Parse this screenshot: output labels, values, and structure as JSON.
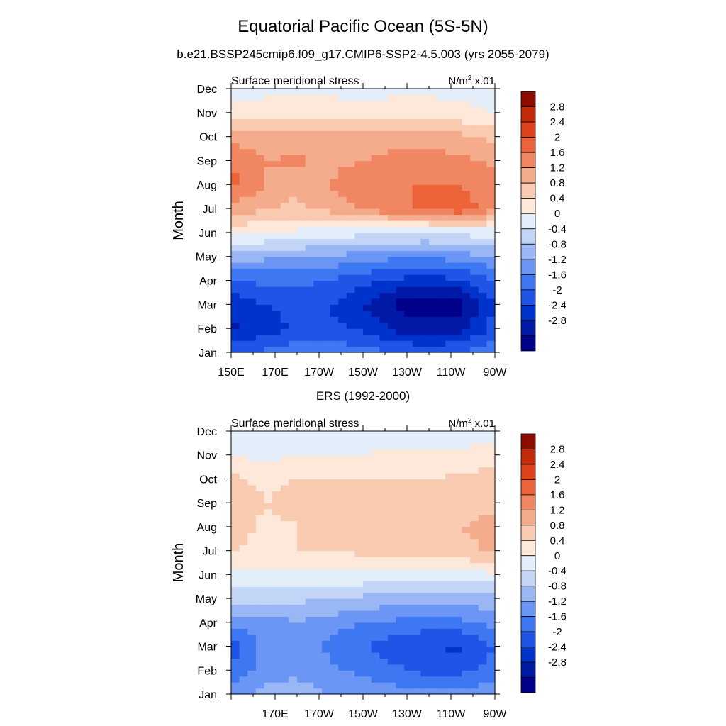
{
  "figure": {
    "title": "Equatorial Pacific Ocean (5S-5N)"
  },
  "colors": {
    "palette": [
      "#00008b",
      "#0019a6",
      "#0033cc",
      "#1f55e6",
      "#3d77f2",
      "#6b96f5",
      "#99b6f5",
      "#c2d5f7",
      "#e3eefa",
      "#fde8d9",
      "#f9ccb2",
      "#f5ac8c",
      "#f08762",
      "#ec6339",
      "#e0421b",
      "#c32a0a",
      "#8f0b00"
    ],
    "axis": "#000000",
    "background": "#ffffff"
  },
  "chart_data": [
    {
      "type": "heatmap",
      "title": "b.e21.BSSP245cmip6.f09_g17.CMIP6-SSP2-4.5.003 (yrs 2055-2079)",
      "panel_left": "Surface meridional stress",
      "units": {
        "base": "N/m",
        "sup": "2",
        "scale": " x.01"
      },
      "xlabel": "",
      "ylabel": "Month",
      "x_tick_labels": [
        "150E",
        "170E",
        "170W",
        "150W",
        "130W",
        "110W",
        "90W"
      ],
      "y_tick_labels": [
        "Jan",
        "Feb",
        "Mar",
        "Apr",
        "May",
        "Jun",
        "Jul",
        "Aug",
        "Sep",
        "Oct",
        "Nov",
        "Dec"
      ],
      "x_longitudes_east": [
        150,
        165,
        180,
        195,
        210,
        225,
        240,
        255,
        270
      ],
      "xlim": [
        150,
        270
      ],
      "values": [
        [
          -1.6,
          -1.5,
          -1.3,
          -1.3,
          -1.4,
          -1.6,
          -1.7,
          -1.5,
          -1.3
        ],
        [
          -2.5,
          -2.2,
          -1.9,
          -1.9,
          -2.1,
          -2.5,
          -2.7,
          -2.6,
          -1.8
        ],
        [
          -2.3,
          -2.0,
          -1.9,
          -2.0,
          -2.4,
          -2.9,
          -3.0,
          -2.9,
          -2.0
        ],
        [
          -1.6,
          -1.5,
          -1.5,
          -1.6,
          -1.9,
          -2.1,
          -2.2,
          -2.1,
          -1.6
        ],
        [
          -0.6,
          -0.7,
          -0.8,
          -0.9,
          -1.0,
          -1.1,
          -1.1,
          -1.0,
          -0.8
        ],
        [
          0.5,
          0.4,
          0.3,
          0.2,
          0.1,
          0.1,
          0.0,
          0.1,
          0.2
        ],
        [
          1.5,
          1.2,
          1.1,
          1.3,
          1.7,
          1.9,
          2.1,
          2.3,
          1.6
        ],
        [
          2.1,
          1.6,
          1.3,
          1.6,
          1.9,
          2.0,
          2.0,
          2.0,
          1.7
        ],
        [
          2.0,
          1.6,
          1.7,
          1.5,
          1.6,
          1.8,
          1.8,
          1.7,
          1.5
        ],
        [
          1.5,
          1.3,
          1.3,
          1.3,
          1.3,
          1.4,
          1.4,
          1.3,
          1.1
        ],
        [
          0.6,
          0.6,
          0.6,
          0.6,
          0.5,
          0.6,
          0.6,
          0.5,
          0.4
        ],
        [
          0.1,
          0.3,
          0.3,
          0.3,
          0.3,
          0.3,
          0.3,
          0.3,
          0.2
        ]
      ],
      "levels": [
        -2.8,
        -2.4,
        -2.0,
        -1.6,
        -1.2,
        -0.8,
        -0.4,
        0,
        0.4,
        0.8,
        1.2,
        1.6,
        2.0,
        2.4,
        2.8
      ],
      "colorbar_labels": [
        "2.8",
        "2.4",
        "2",
        "1.6",
        "1.2",
        "0.8",
        "0.4",
        "0",
        "-0.4",
        "-0.8",
        "-1.2",
        "-1.6",
        "-2",
        "-2.4",
        "-2.8"
      ]
    },
    {
      "type": "heatmap",
      "title": "ERS (1992-2000)",
      "panel_left": "Surface meridional stress",
      "units": {
        "base": "N/m",
        "sup": "2",
        "scale": " x.01"
      },
      "xlabel": "",
      "ylabel": "Month",
      "x_tick_labels": [
        "170E",
        "170W",
        "150W",
        "130W",
        "110W",
        "90W"
      ],
      "y_tick_labels": [
        "Jan",
        "Feb",
        "Mar",
        "Apr",
        "May",
        "Jun",
        "Jul",
        "Aug",
        "Sep",
        "Oct",
        "Nov",
        "Dec"
      ],
      "x_longitudes_east": [
        150,
        165,
        180,
        195,
        210,
        225,
        240,
        255,
        270
      ],
      "xlim": [
        150,
        270
      ],
      "values": [
        [
          -1.0,
          -0.7,
          -0.6,
          -0.8,
          -0.9,
          -1.0,
          -1.1,
          -1.1,
          -0.9
        ],
        [
          -1.6,
          -1.0,
          -0.9,
          -1.1,
          -1.3,
          -1.5,
          -1.7,
          -1.7,
          -1.4
        ],
        [
          -1.8,
          -1.1,
          -1.0,
          -1.3,
          -1.6,
          -1.9,
          -2.0,
          -2.1,
          -1.6
        ],
        [
          -1.0,
          -1.0,
          -0.8,
          -1.0,
          -1.2,
          -1.3,
          -1.4,
          -1.3,
          -1.1
        ],
        [
          -0.3,
          -0.3,
          -0.3,
          -0.4,
          -0.5,
          -0.6,
          -0.6,
          -0.6,
          -0.5
        ],
        [
          0.3,
          0.3,
          0.3,
          0.3,
          0.3,
          0.3,
          0.3,
          0.2,
          0.3
        ],
        [
          0.8,
          0.7,
          0.8,
          0.8,
          0.9,
          0.9,
          0.9,
          1.1,
          1.3
        ],
        [
          1.0,
          0.7,
          0.8,
          0.9,
          1.0,
          1.0,
          1.0,
          1.2,
          1.3
        ],
        [
          1.2,
          0.8,
          0.9,
          0.9,
          1.0,
          1.0,
          1.0,
          1.1,
          1.1
        ],
        [
          0.9,
          0.7,
          0.8,
          0.8,
          0.8,
          0.8,
          0.8,
          0.9,
          1.0
        ],
        [
          0.4,
          0.3,
          0.4,
          0.4,
          0.4,
          0.5,
          0.5,
          0.5,
          0.6
        ],
        [
          0.0,
          0.1,
          0.1,
          0.1,
          0.1,
          0.2,
          0.2,
          0.2,
          0.2
        ]
      ],
      "levels": [
        -2.8,
        -2.4,
        -2.0,
        -1.6,
        -1.2,
        -0.8,
        -0.4,
        0,
        0.4,
        0.8,
        1.2,
        1.6,
        2.0,
        2.4,
        2.8
      ],
      "colorbar_labels": [
        "2.8",
        "2.4",
        "2",
        "1.6",
        "1.2",
        "0.8",
        "0.4",
        "0",
        "-0.4",
        "-0.8",
        "-1.2",
        "-1.6",
        "-2",
        "-2.4",
        "-2.8"
      ]
    }
  ]
}
